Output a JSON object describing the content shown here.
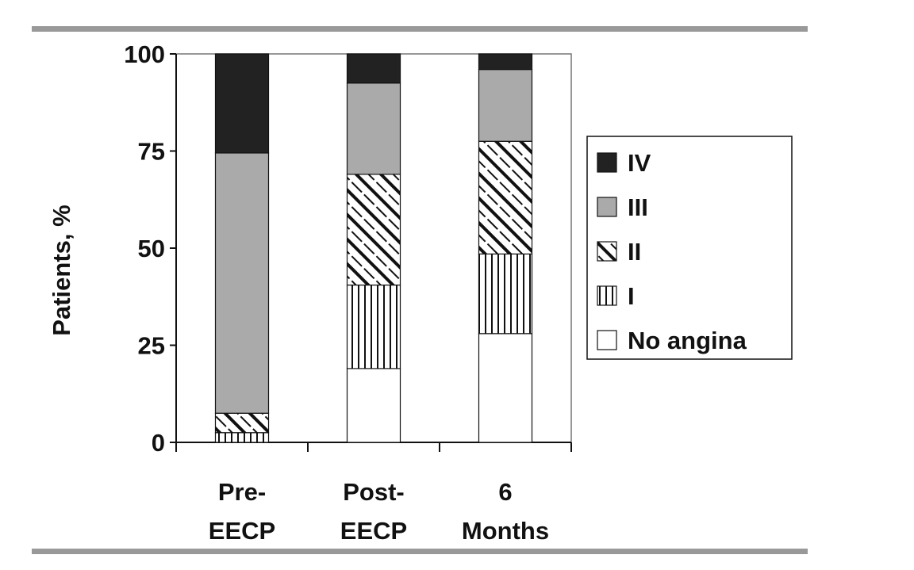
{
  "chart_data": {
    "type": "bar",
    "stacked": true,
    "categories": [
      [
        "Pre-",
        "EECP"
      ],
      [
        "Post-",
        "EECP"
      ],
      [
        "6",
        "Months"
      ]
    ],
    "ylabel": "Patients, %",
    "ylim": [
      0,
      100
    ],
    "yticks": [
      0,
      25,
      50,
      75,
      100
    ],
    "grid": false,
    "legend_position": "right",
    "series": [
      {
        "name": "No angina",
        "pattern": "blank",
        "values": [
          0,
          19,
          28
        ]
      },
      {
        "name": "I",
        "pattern": "vertical",
        "values": [
          2.5,
          21.5,
          20.5
        ]
      },
      {
        "name": "II",
        "pattern": "diagonal",
        "values": [
          5,
          28.5,
          29
        ]
      },
      {
        "name": "III",
        "pattern": "gray",
        "values": [
          67,
          23.5,
          18.5
        ]
      },
      {
        "name": "IV",
        "pattern": "black",
        "values": [
          25.5,
          7.5,
          4
        ]
      }
    ],
    "legend_order": [
      "IV",
      "III",
      "II",
      "I",
      "No angina"
    ],
    "colors": {
      "gray": "#aaaaaa",
      "black": "#222222",
      "rule": "#999999"
    }
  }
}
